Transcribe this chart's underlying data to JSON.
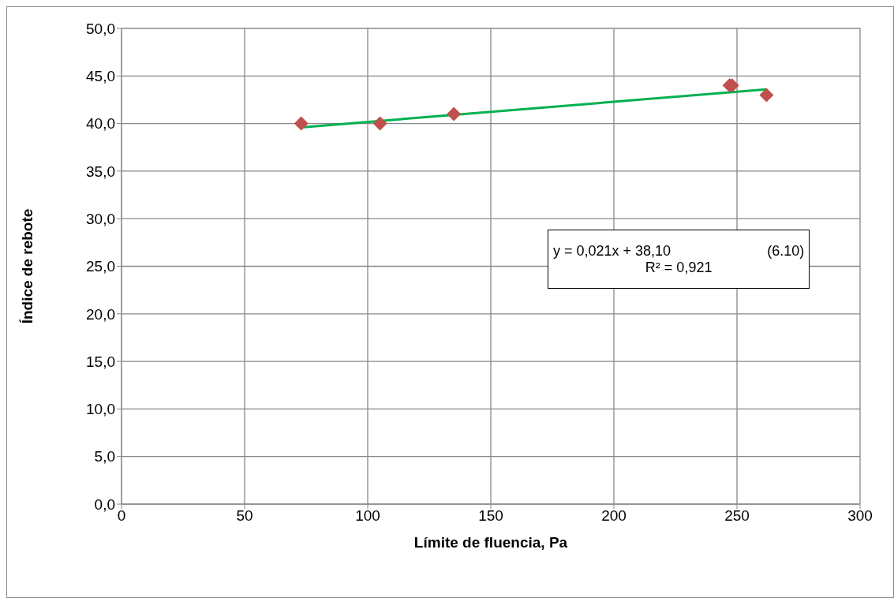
{
  "chart_data": {
    "type": "scatter",
    "xlabel": "Límite de fluencia, Pa",
    "ylabel": "Índice de rebote",
    "xlim": [
      0,
      300
    ],
    "xticks": [
      0,
      50,
      100,
      150,
      200,
      250,
      300
    ],
    "ylim": [
      0,
      50
    ],
    "yticks": [
      {
        "value": 0,
        "label": "0,0"
      },
      {
        "value": 5,
        "label": "5,0"
      },
      {
        "value": 10,
        "label": "10,0"
      },
      {
        "value": 15,
        "label": "15,0"
      },
      {
        "value": 20,
        "label": "20,0"
      },
      {
        "value": 25,
        "label": "25,0"
      },
      {
        "value": 30,
        "label": "30,0"
      },
      {
        "value": 35,
        "label": "35,0"
      },
      {
        "value": 40,
        "label": "40,0"
      },
      {
        "value": 45,
        "label": "45,0"
      },
      {
        "value": 50,
        "label": "50,0"
      }
    ],
    "grid": true,
    "series": [
      {
        "type": "scatter",
        "color": "#c0504d",
        "marker": "diamond",
        "x": [
          73,
          105,
          135,
          247,
          248,
          262
        ],
        "values": [
          40,
          40,
          41,
          44,
          44,
          43
        ]
      },
      {
        "type": "line",
        "color": "#00b050",
        "marker": "none",
        "x": [
          73,
          262
        ],
        "values": [
          39.6,
          43.6
        ]
      }
    ],
    "annotations": [
      "y = 0,021x + 38,10",
      "(6.10)",
      "R² = 0,921"
    ]
  }
}
